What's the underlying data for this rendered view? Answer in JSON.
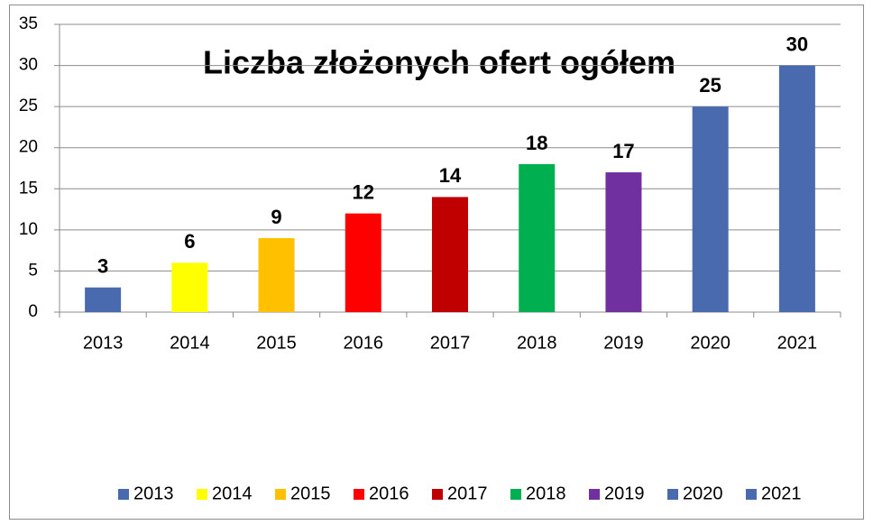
{
  "chart_data": {
    "type": "bar",
    "title": "Liczba złożonych ofert ogółem",
    "categories": [
      "2013",
      "2014",
      "2015",
      "2016",
      "2017",
      "2018",
      "2019",
      "2020",
      "2021"
    ],
    "values": [
      3,
      6,
      9,
      12,
      14,
      18,
      17,
      25,
      30
    ],
    "colors": [
      "#4a6ab0",
      "#ffff00",
      "#ffc000",
      "#ff0000",
      "#c00000",
      "#00b050",
      "#7030a0",
      "#4a6ab0",
      "#4a6ab0"
    ],
    "ylim": [
      0,
      35
    ],
    "yticks": [
      0,
      5,
      10,
      15,
      20,
      25,
      30,
      35
    ],
    "grid": true,
    "legend": "bottom"
  }
}
